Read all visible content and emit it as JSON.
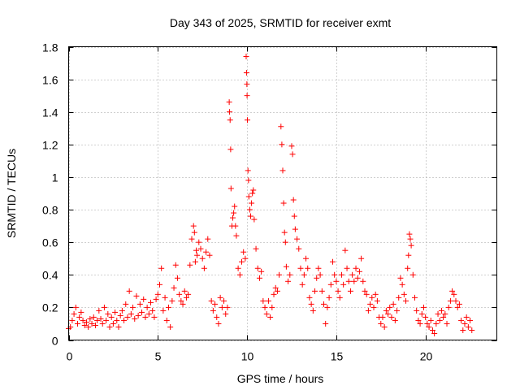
{
  "chart_data": {
    "type": "scatter",
    "title": "Day 343 of 2025, SRMTID for receiver exmt",
    "xlabel": "GPS time / hours",
    "ylabel": "SRMTID / TECUs",
    "xlim": [
      0,
      24
    ],
    "ylim": [
      0,
      1.8
    ],
    "grid": true,
    "marker": "+",
    "series_color": "#ff0000",
    "xticks": [
      {
        "value": 0,
        "label": "0"
      },
      {
        "value": 5,
        "label": "5"
      },
      {
        "value": 10,
        "label": "10"
      },
      {
        "value": 15,
        "label": "15"
      },
      {
        "value": 20,
        "label": "20"
      }
    ],
    "yticks": [
      {
        "value": 0,
        "label": "0"
      },
      {
        "value": 0.2,
        "label": "0.2"
      },
      {
        "value": 0.4,
        "label": "0.4"
      },
      {
        "value": 0.6,
        "label": "0.6"
      },
      {
        "value": 0.8,
        "label": "0.8"
      },
      {
        "value": 1.0,
        "label": "1"
      },
      {
        "value": 1.2,
        "label": "1.2"
      },
      {
        "value": 1.4,
        "label": "1.4"
      },
      {
        "value": 1.6,
        "label": "1.6"
      },
      {
        "value": 1.8,
        "label": "1.8"
      }
    ],
    "series": [
      {
        "name": "SRMTID",
        "points": [
          [
            0.0,
            0.07
          ],
          [
            0.1,
            0.08
          ],
          [
            0.2,
            0.12
          ],
          [
            0.3,
            0.16
          ],
          [
            0.4,
            0.2
          ],
          [
            0.5,
            0.1
          ],
          [
            0.6,
            0.14
          ],
          [
            0.7,
            0.17
          ],
          [
            0.8,
            0.12
          ],
          [
            0.9,
            0.09
          ],
          [
            1.0,
            0.11
          ],
          [
            1.1,
            0.08
          ],
          [
            1.2,
            0.13
          ],
          [
            1.3,
            0.1
          ],
          [
            1.4,
            0.14
          ],
          [
            1.5,
            0.09
          ],
          [
            1.6,
            0.12
          ],
          [
            1.7,
            0.18
          ],
          [
            1.8,
            0.13
          ],
          [
            1.9,
            0.1
          ],
          [
            2.0,
            0.2
          ],
          [
            2.1,
            0.12
          ],
          [
            2.2,
            0.16
          ],
          [
            2.3,
            0.08
          ],
          [
            2.4,
            0.14
          ],
          [
            2.5,
            0.1
          ],
          [
            2.6,
            0.17
          ],
          [
            2.7,
            0.12
          ],
          [
            2.8,
            0.08
          ],
          [
            2.9,
            0.15
          ],
          [
            3.0,
            0.18
          ],
          [
            3.1,
            0.12
          ],
          [
            3.2,
            0.22
          ],
          [
            3.3,
            0.14
          ],
          [
            3.4,
            0.3
          ],
          [
            3.5,
            0.16
          ],
          [
            3.6,
            0.2
          ],
          [
            3.7,
            0.13
          ],
          [
            3.8,
            0.27
          ],
          [
            3.9,
            0.15
          ],
          [
            4.0,
            0.22
          ],
          [
            4.1,
            0.17
          ],
          [
            4.2,
            0.25
          ],
          [
            4.3,
            0.14
          ],
          [
            4.4,
            0.2
          ],
          [
            4.5,
            0.16
          ],
          [
            4.6,
            0.23
          ],
          [
            4.7,
            0.18
          ],
          [
            4.8,
            0.14
          ],
          [
            4.9,
            0.25
          ],
          [
            5.0,
            0.28
          ],
          [
            5.1,
            0.34
          ],
          [
            5.2,
            0.44
          ],
          [
            5.3,
            0.18
          ],
          [
            5.4,
            0.26
          ],
          [
            5.5,
            0.12
          ],
          [
            5.6,
            0.2
          ],
          [
            5.7,
            0.08
          ],
          [
            5.8,
            0.24
          ],
          [
            5.9,
            0.32
          ],
          [
            6.0,
            0.46
          ],
          [
            6.1,
            0.38
          ],
          [
            6.2,
            0.28
          ],
          [
            6.3,
            0.24
          ],
          [
            6.4,
            0.22
          ],
          [
            6.5,
            0.3
          ],
          [
            6.6,
            0.26
          ],
          [
            6.7,
            0.28
          ],
          [
            6.8,
            0.46
          ],
          [
            6.9,
            0.62
          ],
          [
            7.0,
            0.7
          ],
          [
            7.05,
            0.66
          ],
          [
            7.1,
            0.48
          ],
          [
            7.15,
            0.55
          ],
          [
            7.2,
            0.52
          ],
          [
            7.3,
            0.6
          ],
          [
            7.4,
            0.56
          ],
          [
            7.5,
            0.5
          ],
          [
            7.6,
            0.44
          ],
          [
            7.7,
            0.54
          ],
          [
            7.8,
            0.62
          ],
          [
            7.9,
            0.52
          ],
          [
            8.0,
            0.24
          ],
          [
            8.1,
            0.18
          ],
          [
            8.2,
            0.22
          ],
          [
            8.3,
            0.14
          ],
          [
            8.4,
            0.1
          ],
          [
            8.5,
            0.26
          ],
          [
            8.6,
            0.2
          ],
          [
            8.7,
            0.24
          ],
          [
            8.8,
            0.16
          ],
          [
            8.9,
            0.2
          ],
          [
            9.0,
            1.46
          ],
          [
            9.02,
            1.4
          ],
          [
            9.05,
            1.35
          ],
          [
            9.08,
            1.17
          ],
          [
            9.1,
            0.93
          ],
          [
            9.15,
            0.7
          ],
          [
            9.2,
            0.75
          ],
          [
            9.25,
            0.78
          ],
          [
            9.3,
            0.82
          ],
          [
            9.35,
            0.7
          ],
          [
            9.4,
            0.64
          ],
          [
            9.5,
            0.44
          ],
          [
            9.6,
            0.4
          ],
          [
            9.7,
            0.48
          ],
          [
            9.8,
            0.54
          ],
          [
            9.9,
            0.5
          ],
          [
            9.95,
            1.74
          ],
          [
            9.97,
            1.64
          ],
          [
            9.99,
            1.57
          ],
          [
            10.0,
            1.5
          ],
          [
            10.02,
            1.35
          ],
          [
            10.05,
            1.04
          ],
          [
            10.08,
            0.98
          ],
          [
            10.1,
            0.88
          ],
          [
            10.15,
            0.8
          ],
          [
            10.2,
            0.76
          ],
          [
            10.25,
            0.84
          ],
          [
            10.3,
            0.9
          ],
          [
            10.35,
            0.92
          ],
          [
            10.4,
            0.74
          ],
          [
            10.5,
            0.56
          ],
          [
            10.6,
            0.44
          ],
          [
            10.7,
            0.38
          ],
          [
            10.8,
            0.42
          ],
          [
            10.9,
            0.24
          ],
          [
            11.0,
            0.2
          ],
          [
            11.1,
            0.16
          ],
          [
            11.2,
            0.24
          ],
          [
            11.3,
            0.14
          ],
          [
            11.4,
            0.2
          ],
          [
            11.5,
            0.28
          ],
          [
            11.6,
            0.32
          ],
          [
            11.7,
            0.3
          ],
          [
            11.8,
            0.4
          ],
          [
            11.9,
            1.31
          ],
          [
            11.95,
            1.2
          ],
          [
            12.0,
            1.04
          ],
          [
            12.05,
            0.84
          ],
          [
            12.1,
            0.66
          ],
          [
            12.15,
            0.6
          ],
          [
            12.2,
            0.45
          ],
          [
            12.3,
            0.36
          ],
          [
            12.4,
            0.4
          ],
          [
            12.5,
            1.19
          ],
          [
            12.55,
            1.14
          ],
          [
            12.6,
            0.86
          ],
          [
            12.65,
            0.76
          ],
          [
            12.7,
            0.68
          ],
          [
            12.8,
            0.62
          ],
          [
            12.9,
            0.56
          ],
          [
            13.0,
            0.44
          ],
          [
            13.1,
            0.34
          ],
          [
            13.2,
            0.4
          ],
          [
            13.3,
            0.5
          ],
          [
            13.4,
            0.44
          ],
          [
            13.5,
            0.26
          ],
          [
            13.6,
            0.22
          ],
          [
            13.7,
            0.18
          ],
          [
            13.8,
            0.3
          ],
          [
            13.9,
            0.38
          ],
          [
            14.0,
            0.44
          ],
          [
            14.1,
            0.4
          ],
          [
            14.2,
            0.3
          ],
          [
            14.3,
            0.22
          ],
          [
            14.4,
            0.1
          ],
          [
            14.5,
            0.2
          ],
          [
            14.6,
            0.26
          ],
          [
            14.7,
            0.34
          ],
          [
            14.8,
            0.48
          ],
          [
            14.9,
            0.4
          ],
          [
            15.0,
            0.36
          ],
          [
            15.1,
            0.3
          ],
          [
            15.2,
            0.26
          ],
          [
            15.3,
            0.4
          ],
          [
            15.4,
            0.34
          ],
          [
            15.5,
            0.55
          ],
          [
            15.6,
            0.44
          ],
          [
            15.7,
            0.36
          ],
          [
            15.8,
            0.3
          ],
          [
            15.9,
            0.4
          ],
          [
            16.0,
            0.36
          ],
          [
            16.1,
            0.44
          ],
          [
            16.2,
            0.38
          ],
          [
            16.3,
            0.42
          ],
          [
            16.4,
            0.5
          ],
          [
            16.5,
            0.36
          ],
          [
            16.6,
            0.3
          ],
          [
            16.7,
            0.28
          ],
          [
            16.8,
            0.18
          ],
          [
            16.9,
            0.22
          ],
          [
            17.0,
            0.26
          ],
          [
            17.1,
            0.2
          ],
          [
            17.2,
            0.28
          ],
          [
            17.3,
            0.24
          ],
          [
            17.4,
            0.14
          ],
          [
            17.5,
            0.1
          ],
          [
            17.6,
            0.14
          ],
          [
            17.7,
            0.08
          ],
          [
            17.8,
            0.18
          ],
          [
            17.9,
            0.16
          ],
          [
            18.0,
            0.2
          ],
          [
            18.1,
            0.14
          ],
          [
            18.2,
            0.22
          ],
          [
            18.3,
            0.12
          ],
          [
            18.4,
            0.18
          ],
          [
            18.5,
            0.26
          ],
          [
            18.6,
            0.38
          ],
          [
            18.7,
            0.34
          ],
          [
            18.8,
            0.28
          ],
          [
            18.9,
            0.24
          ],
          [
            19.0,
            0.44
          ],
          [
            19.05,
            0.52
          ],
          [
            19.1,
            0.65
          ],
          [
            19.15,
            0.62
          ],
          [
            19.2,
            0.58
          ],
          [
            19.3,
            0.4
          ],
          [
            19.4,
            0.26
          ],
          [
            19.5,
            0.18
          ],
          [
            19.6,
            0.12
          ],
          [
            19.7,
            0.1
          ],
          [
            19.8,
            0.16
          ],
          [
            19.9,
            0.2
          ],
          [
            20.0,
            0.14
          ],
          [
            20.1,
            0.1
          ],
          [
            20.2,
            0.08
          ],
          [
            20.3,
            0.12
          ],
          [
            20.4,
            0.06
          ],
          [
            20.5,
            0.04
          ],
          [
            20.6,
            0.1
          ],
          [
            20.7,
            0.16
          ],
          [
            20.8,
            0.12
          ],
          [
            20.9,
            0.18
          ],
          [
            21.0,
            0.14
          ],
          [
            21.1,
            0.16
          ],
          [
            21.2,
            0.1
          ],
          [
            21.3,
            0.2
          ],
          [
            21.4,
            0.24
          ],
          [
            21.5,
            0.3
          ],
          [
            21.6,
            0.28
          ],
          [
            21.7,
            0.24
          ],
          [
            21.8,
            0.2
          ],
          [
            21.9,
            0.22
          ],
          [
            22.0,
            0.12
          ],
          [
            22.1,
            0.06
          ],
          [
            22.2,
            0.1
          ],
          [
            22.3,
            0.14
          ],
          [
            22.4,
            0.08
          ],
          [
            22.5,
            0.12
          ],
          [
            22.6,
            0.06
          ]
        ]
      }
    ]
  }
}
